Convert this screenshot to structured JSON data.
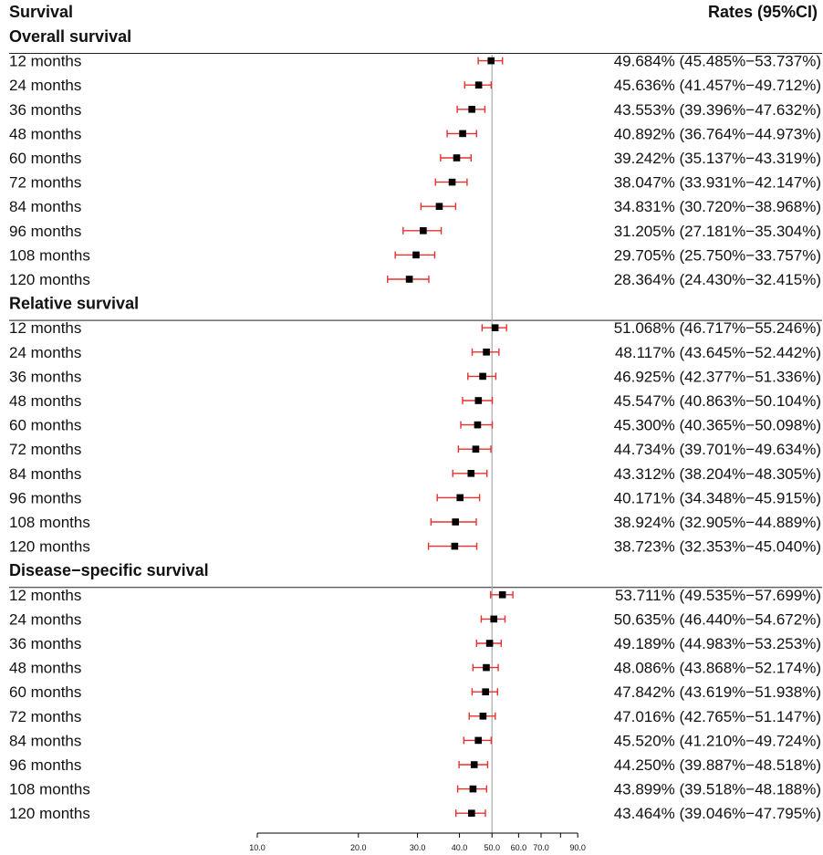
{
  "chart_data": {
    "type": "forest",
    "header_left": "Survival",
    "header_right": "Rates (95%CI)",
    "x_scale": "log",
    "xlim": [
      10,
      100
    ],
    "reference_line": 50,
    "x_ticks": [
      10,
      20,
      30,
      40,
      50,
      60,
      70,
      80,
      90
    ],
    "x_tick_labels": [
      "10.0",
      "20.0",
      "30.0",
      "40.0",
      "50.0",
      "60.0",
      "70.0",
      "",
      "90.0"
    ],
    "colors": {
      "marker": "#000000",
      "ci": "#e8312f",
      "reference": "#aaaaaa",
      "axis": "#000000"
    },
    "groups": [
      {
        "name": "Overall survival",
        "rows": [
          {
            "label": "12 months",
            "rate": 49.684,
            "lower": 45.485,
            "upper": 53.737,
            "text": "49.684% (45.485%−53.737%)"
          },
          {
            "label": "24 months",
            "rate": 45.636,
            "lower": 41.457,
            "upper": 49.712,
            "text": "45.636% (41.457%−49.712%)"
          },
          {
            "label": "36 months",
            "rate": 43.553,
            "lower": 39.396,
            "upper": 47.632,
            "text": "43.553% (39.396%−47.632%)"
          },
          {
            "label": "48 months",
            "rate": 40.892,
            "lower": 36.764,
            "upper": 44.973,
            "text": "40.892% (36.764%−44.973%)"
          },
          {
            "label": "60 months",
            "rate": 39.242,
            "lower": 35.137,
            "upper": 43.319,
            "text": "39.242% (35.137%−43.319%)"
          },
          {
            "label": "72 months",
            "rate": 38.047,
            "lower": 33.931,
            "upper": 42.147,
            "text": "38.047% (33.931%−42.147%)"
          },
          {
            "label": "84 months",
            "rate": 34.831,
            "lower": 30.72,
            "upper": 38.968,
            "text": "34.831% (30.720%−38.968%)"
          },
          {
            "label": "96 months",
            "rate": 31.205,
            "lower": 27.181,
            "upper": 35.304,
            "text": "31.205% (27.181%−35.304%)"
          },
          {
            "label": "108 months",
            "rate": 29.705,
            "lower": 25.75,
            "upper": 33.757,
            "text": "29.705% (25.750%−33.757%)"
          },
          {
            "label": "120 months",
            "rate": 28.364,
            "lower": 24.43,
            "upper": 32.415,
            "text": "28.364% (24.430%−32.415%)"
          }
        ]
      },
      {
        "name": "Relative survival",
        "rows": [
          {
            "label": "12 months",
            "rate": 51.068,
            "lower": 46.717,
            "upper": 55.246,
            "text": "51.068% (46.717%−55.246%)"
          },
          {
            "label": "24 months",
            "rate": 48.117,
            "lower": 43.645,
            "upper": 52.442,
            "text": "48.117% (43.645%−52.442%)"
          },
          {
            "label": "36 months",
            "rate": 46.925,
            "lower": 42.377,
            "upper": 51.336,
            "text": "46.925% (42.377%−51.336%)"
          },
          {
            "label": "48 months",
            "rate": 45.547,
            "lower": 40.863,
            "upper": 50.104,
            "text": "45.547% (40.863%−50.104%)"
          },
          {
            "label": "60 months",
            "rate": 45.3,
            "lower": 40.365,
            "upper": 50.098,
            "text": "45.300% (40.365%−50.098%)"
          },
          {
            "label": "72 months",
            "rate": 44.734,
            "lower": 39.701,
            "upper": 49.634,
            "text": "44.734% (39.701%−49.634%)"
          },
          {
            "label": "84 months",
            "rate": 43.312,
            "lower": 38.204,
            "upper": 48.305,
            "text": "43.312% (38.204%−48.305%)"
          },
          {
            "label": "96 months",
            "rate": 40.171,
            "lower": 34.348,
            "upper": 45.915,
            "text": "40.171% (34.348%−45.915%)"
          },
          {
            "label": "108 months",
            "rate": 38.924,
            "lower": 32.905,
            "upper": 44.889,
            "text": "38.924% (32.905%−44.889%)"
          },
          {
            "label": "120 months",
            "rate": 38.723,
            "lower": 32.353,
            "upper": 45.04,
            "text": "38.723% (32.353%−45.040%)"
          }
        ]
      },
      {
        "name": "Disease−specific survival",
        "rows": [
          {
            "label": "12 months",
            "rate": 53.711,
            "lower": 49.535,
            "upper": 57.699,
            "text": "53.711% (49.535%−57.699%)"
          },
          {
            "label": "24 months",
            "rate": 50.635,
            "lower": 46.44,
            "upper": 54.672,
            "text": "50.635% (46.440%−54.672%)"
          },
          {
            "label": "36 months",
            "rate": 49.189,
            "lower": 44.983,
            "upper": 53.253,
            "text": "49.189% (44.983%−53.253%)"
          },
          {
            "label": "48 months",
            "rate": 48.086,
            "lower": 43.868,
            "upper": 52.174,
            "text": "48.086% (43.868%−52.174%)"
          },
          {
            "label": "60 months",
            "rate": 47.842,
            "lower": 43.619,
            "upper": 51.938,
            "text": "47.842% (43.619%−51.938%)"
          },
          {
            "label": "72 months",
            "rate": 47.016,
            "lower": 42.765,
            "upper": 51.147,
            "text": "47.016% (42.765%−51.147%)"
          },
          {
            "label": "84 months",
            "rate": 45.52,
            "lower": 41.21,
            "upper": 49.724,
            "text": "45.520% (41.210%−49.724%)"
          },
          {
            "label": "96 months",
            "rate": 44.25,
            "lower": 39.887,
            "upper": 48.518,
            "text": "44.250% (39.887%−48.518%)"
          },
          {
            "label": "108 months",
            "rate": 43.899,
            "lower": 39.518,
            "upper": 48.188,
            "text": "43.899% (39.518%−48.188%)"
          },
          {
            "label": "120 months",
            "rate": 43.464,
            "lower": 39.046,
            "upper": 47.795,
            "text": "43.464% (39.046%−47.795%)"
          }
        ]
      }
    ]
  }
}
